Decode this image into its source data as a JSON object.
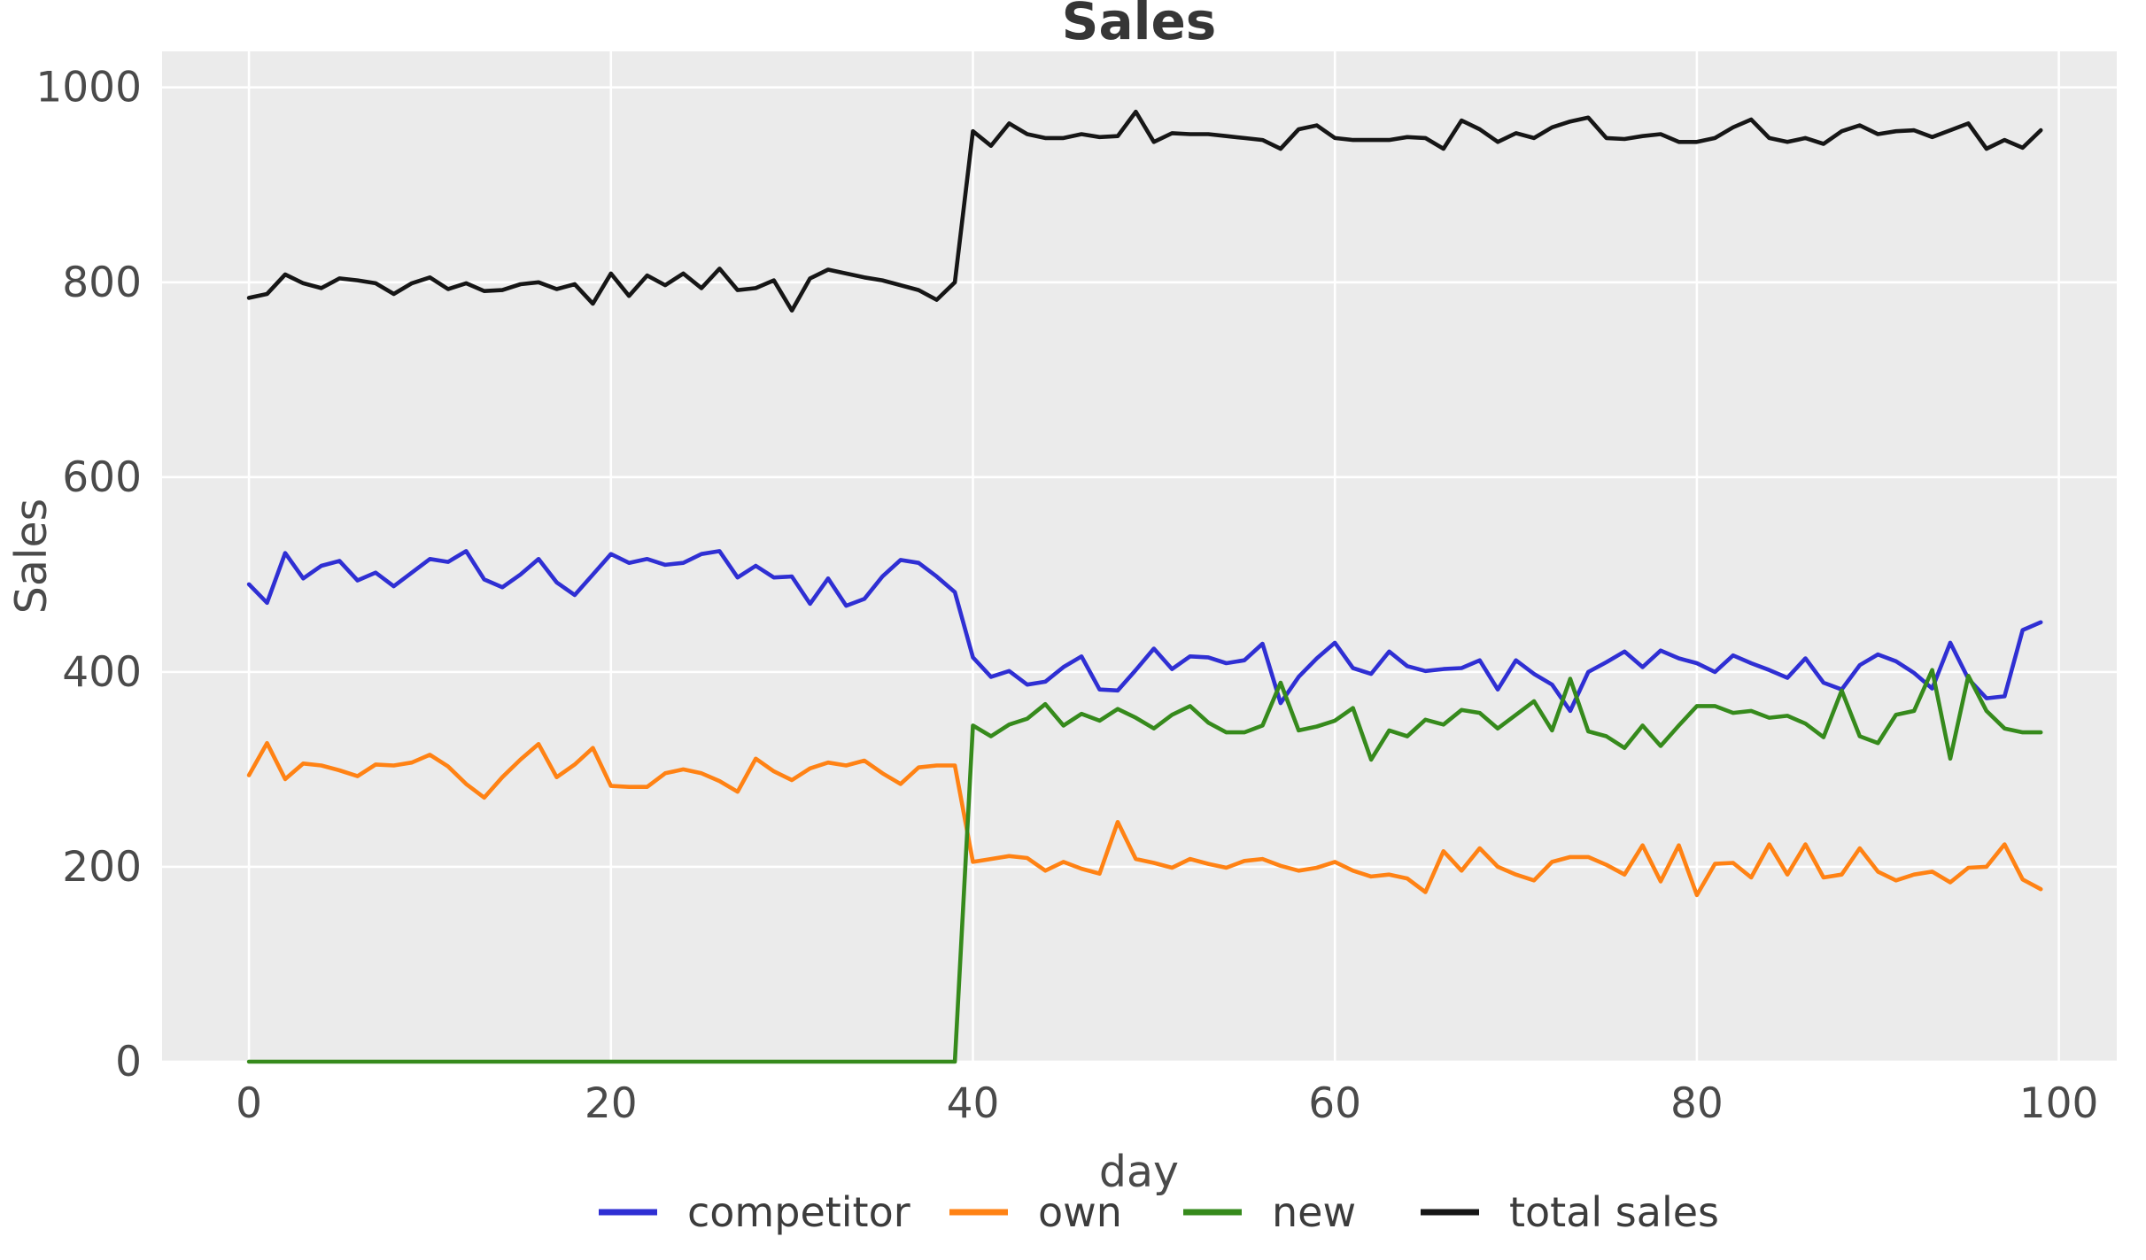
{
  "chart_data": {
    "type": "line",
    "title": "Sales",
    "xlabel": "day",
    "ylabel": "Sales",
    "x_ticks": [
      0,
      20,
      40,
      60,
      80,
      100
    ],
    "y_ticks": [
      0,
      200,
      400,
      600,
      800,
      1000
    ],
    "xlim": [
      -4.8,
      103.2
    ],
    "ylim": [
      0,
      1037
    ],
    "grid": "on",
    "legend_position": "bottom-center",
    "x": [
      0,
      1,
      2,
      3,
      4,
      5,
      6,
      7,
      8,
      9,
      10,
      11,
      12,
      13,
      14,
      15,
      16,
      17,
      18,
      19,
      20,
      21,
      22,
      23,
      24,
      25,
      26,
      27,
      28,
      29,
      30,
      31,
      32,
      33,
      34,
      35,
      36,
      37,
      38,
      39,
      40,
      41,
      42,
      43,
      44,
      45,
      46,
      47,
      48,
      49,
      50,
      51,
      52,
      53,
      54,
      55,
      56,
      57,
      58,
      59,
      60,
      61,
      62,
      63,
      64,
      65,
      66,
      67,
      68,
      69,
      70,
      71,
      72,
      73,
      74,
      75,
      76,
      77,
      78,
      79,
      80,
      81,
      82,
      83,
      84,
      85,
      86,
      87,
      88,
      89,
      90,
      91,
      92,
      93,
      94,
      95,
      96,
      97,
      98,
      99
    ],
    "series": [
      {
        "name": "competitor",
        "color": "#2f2fd3",
        "values": [
          490,
          471,
          522,
          496,
          509,
          514,
          494,
          502,
          488,
          502,
          516,
          513,
          524,
          495,
          487,
          500,
          516,
          492,
          479,
          500,
          521,
          512,
          516,
          510,
          512,
          521,
          524,
          497,
          509,
          497,
          498,
          470,
          496,
          468,
          475,
          498,
          515,
          512,
          498,
          482,
          415,
          395,
          401,
          387,
          390,
          405,
          416,
          382,
          381,
          402,
          424,
          403,
          416,
          415,
          409,
          412,
          429,
          368,
          395,
          414,
          430,
          404,
          398,
          421,
          406,
          401,
          403,
          404,
          412,
          382,
          412,
          398,
          387,
          360,
          400,
          410,
          421,
          405,
          422,
          414,
          409,
          400,
          417,
          409,
          402,
          394,
          414,
          389,
          382,
          407,
          418,
          411,
          399,
          383,
          430,
          393,
          373,
          375,
          443,
          451
        ]
      },
      {
        "name": "own",
        "color": "#ff8214",
        "values": [
          294,
          327,
          290,
          306,
          304,
          299,
          293,
          305,
          304,
          307,
          315,
          303,
          285,
          271,
          292,
          310,
          326,
          292,
          305,
          322,
          283,
          282,
          282,
          296,
          300,
          296,
          288,
          277,
          311,
          298,
          289,
          301,
          307,
          304,
          309,
          296,
          285,
          302,
          304,
          304,
          205,
          208,
          211,
          209,
          196,
          205,
          198,
          193,
          246,
          208,
          204,
          199,
          208,
          203,
          199,
          206,
          208,
          201,
          196,
          199,
          205,
          196,
          190,
          192,
          188,
          174,
          216,
          196,
          219,
          200,
          192,
          186,
          205,
          210,
          210,
          202,
          192,
          222,
          185,
          222,
          171,
          203,
          204,
          189,
          223,
          192,
          223,
          189,
          192,
          219,
          195,
          186,
          192,
          195,
          184,
          199,
          200,
          223,
          187,
          177
        ]
      },
      {
        "name": "new",
        "color": "#368a1c",
        "values": [
          0,
          0,
          0,
          0,
          0,
          0,
          0,
          0,
          0,
          0,
          0,
          0,
          0,
          0,
          0,
          0,
          0,
          0,
          0,
          0,
          0,
          0,
          0,
          0,
          0,
          0,
          0,
          0,
          0,
          0,
          0,
          0,
          0,
          0,
          0,
          0,
          0,
          0,
          0,
          0,
          345,
          334,
          346,
          352,
          367,
          345,
          357,
          350,
          362,
          353,
          342,
          356,
          365,
          348,
          338,
          338,
          345,
          389,
          340,
          344,
          350,
          363,
          310,
          340,
          334,
          351,
          346,
          361,
          358,
          342,
          356,
          370,
          340,
          393,
          339,
          334,
          322,
          345,
          324,
          345,
          365,
          365,
          358,
          360,
          353,
          355,
          347,
          333,
          381,
          334,
          327,
          356,
          360,
          402,
          311,
          396,
          360,
          342,
          338,
          338
        ]
      },
      {
        "name": "total sales",
        "color": "#161616",
        "values": [
          784,
          788,
          808,
          799,
          794,
          804,
          802,
          799,
          788,
          799,
          805,
          793,
          799,
          791,
          792,
          798,
          800,
          793,
          798,
          778,
          809,
          786,
          807,
          797,
          809,
          794,
          814,
          792,
          794,
          802,
          771,
          804,
          813,
          809,
          805,
          802,
          797,
          792,
          782,
          800,
          955,
          940,
          963,
          952,
          948,
          948,
          952,
          949,
          950,
          975,
          944,
          953,
          952,
          952,
          950,
          948,
          946,
          937,
          957,
          961,
          948,
          946,
          946,
          946,
          949,
          948,
          937,
          966,
          957,
          944,
          953,
          948,
          959,
          965,
          969,
          948,
          947,
          950,
          952,
          944,
          944,
          948,
          959,
          967,
          948,
          944,
          948,
          942,
          955,
          961,
          952,
          955,
          956,
          949,
          956,
          963,
          937,
          946,
          938,
          956
        ]
      }
    ]
  },
  "panel": {
    "background_color": "#ebebeb",
    "grid_color": "#ffffff"
  }
}
